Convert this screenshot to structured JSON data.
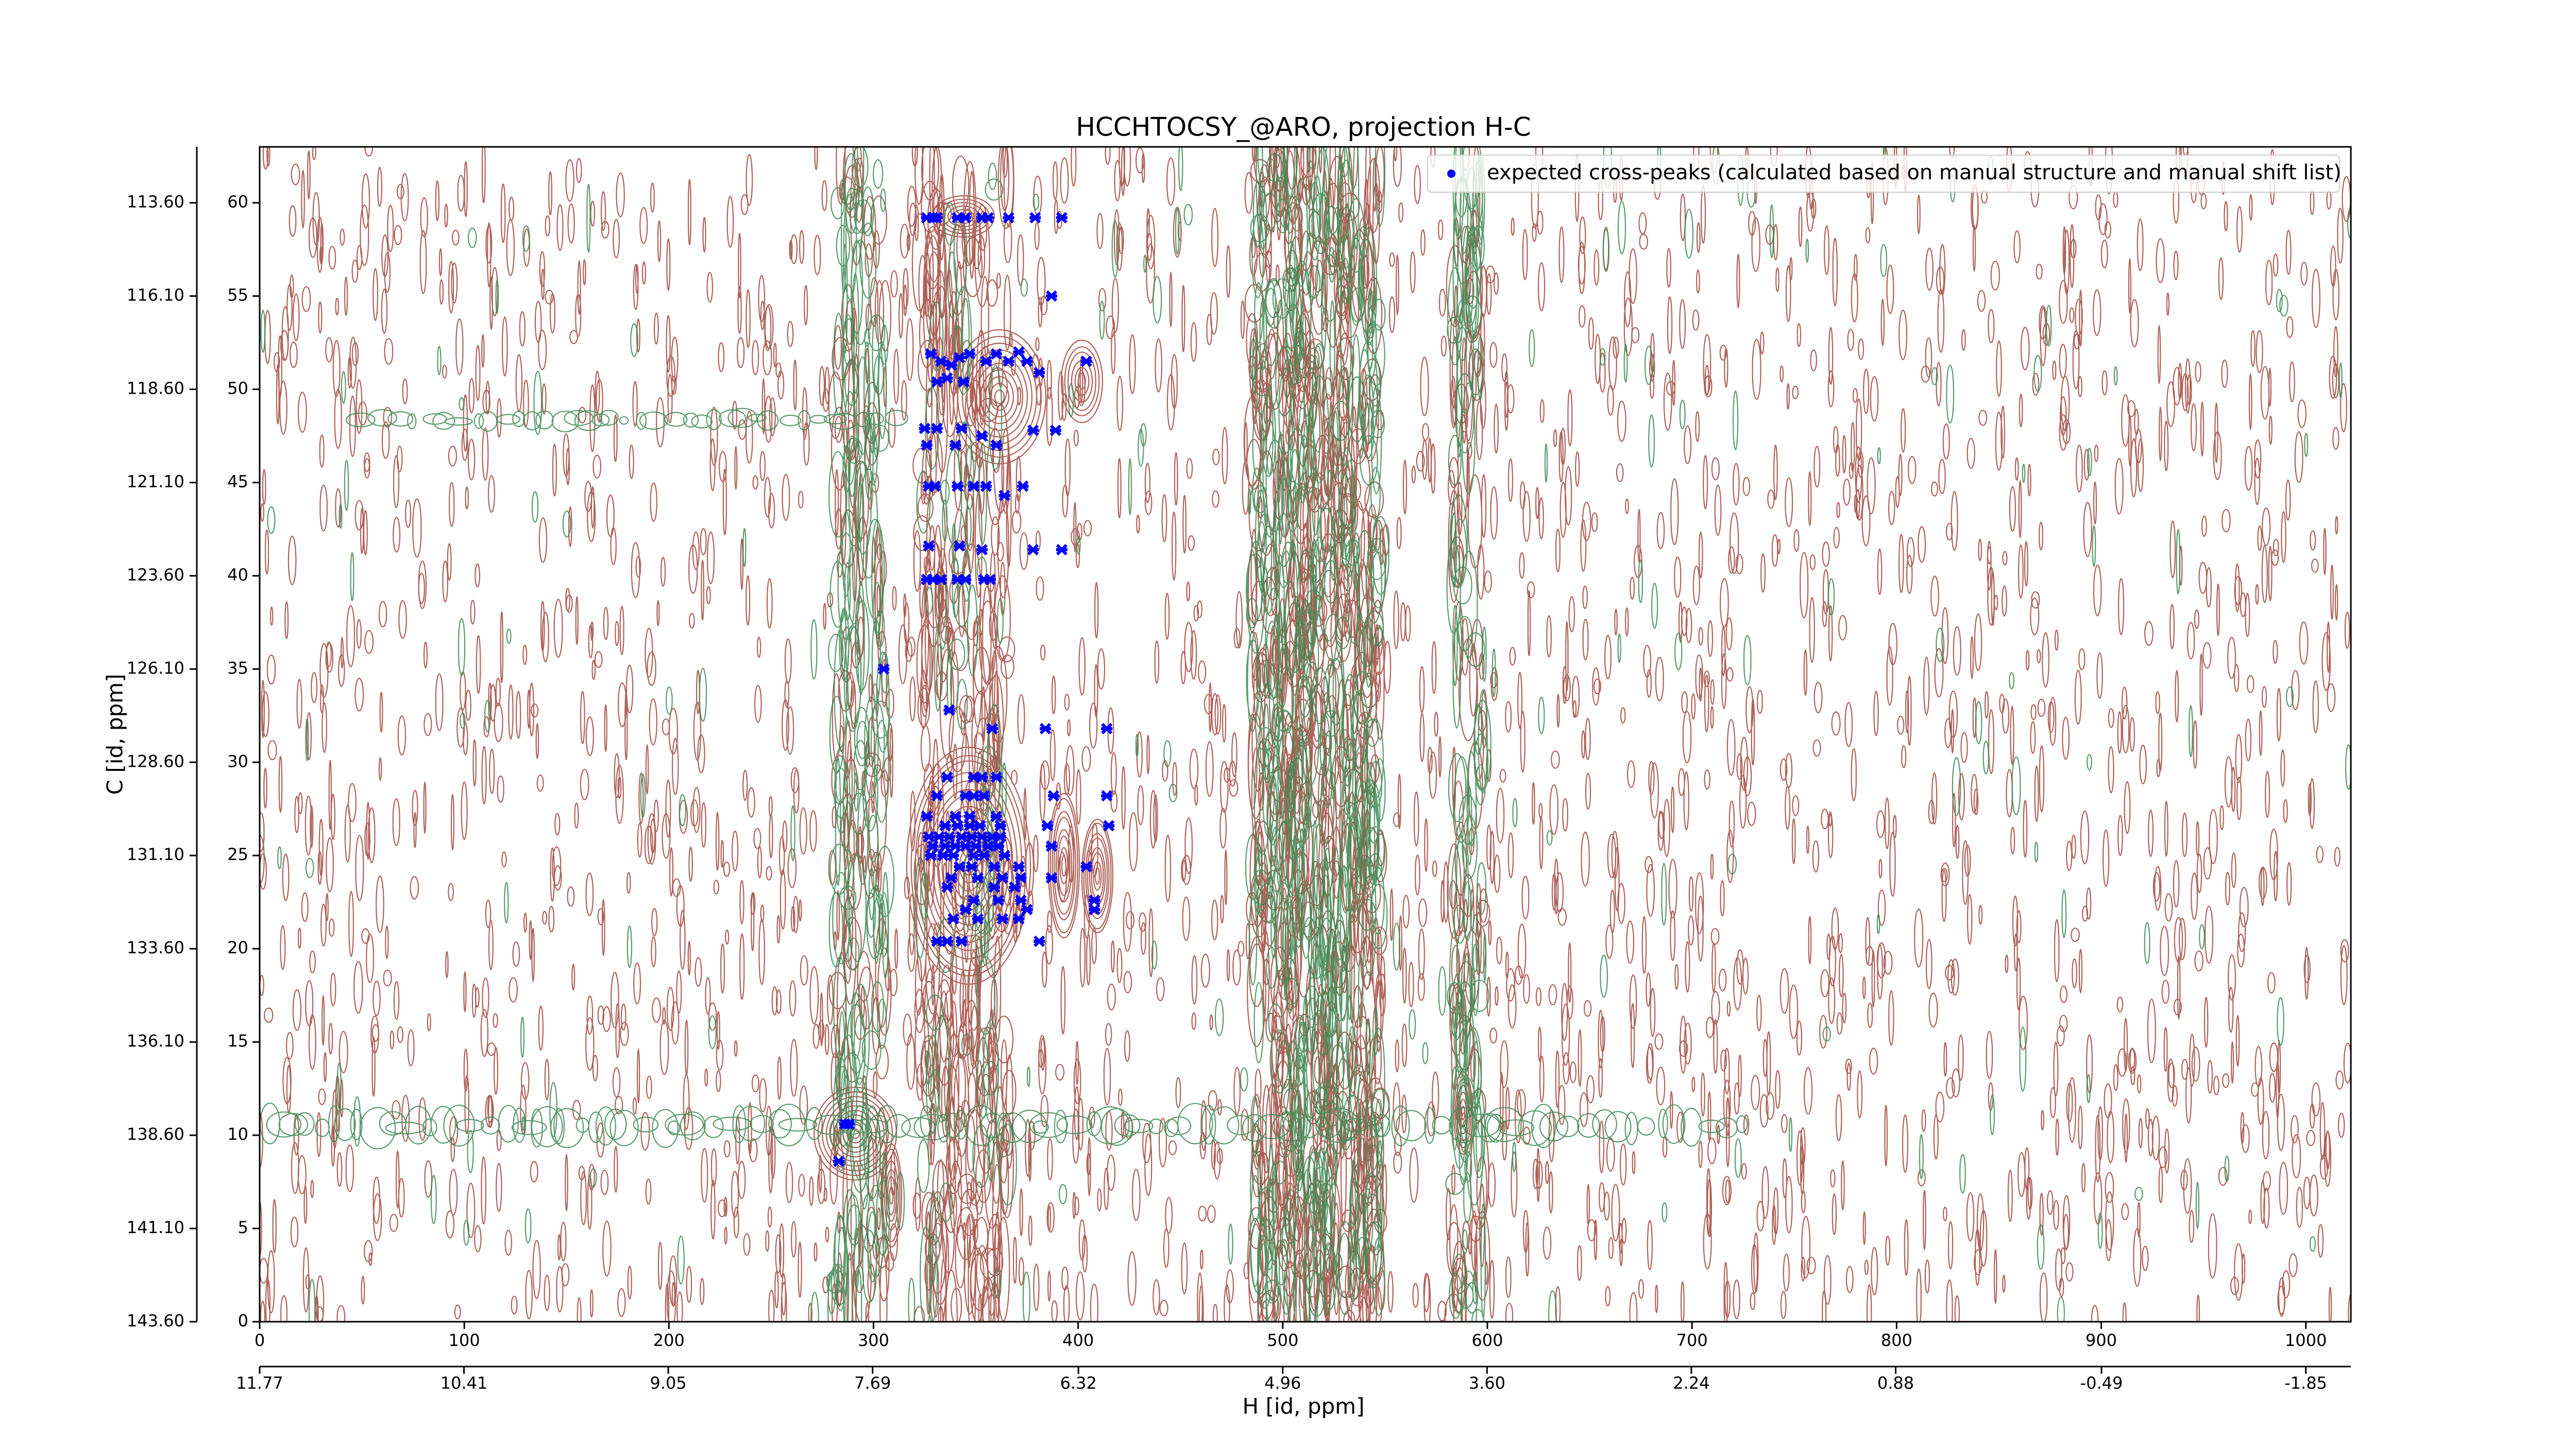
{
  "chart_data": {
    "type": "scatter",
    "title": "HCCHTOCSY_@ARO, projection H-C",
    "xlabel": "H [id, ppm]",
    "ylabel": "C [id, ppm]",
    "xlim": [
      0,
      1022
    ],
    "ylim": [
      0,
      63
    ],
    "xticks": [
      0,
      100,
      200,
      300,
      400,
      500,
      600,
      700,
      800,
      900,
      1000
    ],
    "yticks": [
      0,
      5,
      10,
      15,
      20,
      25,
      30,
      35,
      40,
      45,
      50,
      55,
      60
    ],
    "x2lim": [
      11.77,
      -2.15
    ],
    "x2ticks": [
      11.77,
      10.41,
      9.05,
      7.69,
      6.32,
      4.96,
      {
        "value": 3.6,
        "label": "3.60"
      },
      2.24,
      0.88,
      -0.49,
      -1.85
    ],
    "y2lim": [
      143.6,
      112.1
    ],
    "y2ticks": [
      {
        "value": 143.6,
        "label": "143.60"
      },
      {
        "value": 141.1,
        "label": "141.10"
      },
      {
        "value": 138.6,
        "label": "138.60"
      },
      {
        "value": 136.1,
        "label": "136.10"
      },
      {
        "value": 133.6,
        "label": "133.60"
      },
      {
        "value": 131.1,
        "label": "131.10"
      },
      {
        "value": 128.6,
        "label": "128.60"
      },
      {
        "value": 126.1,
        "label": "126.10"
      },
      {
        "value": 123.6,
        "label": "123.60"
      },
      {
        "value": 121.1,
        "label": "121.10"
      },
      {
        "value": 118.6,
        "label": "118.60"
      },
      {
        "value": 116.1,
        "label": "116.10"
      },
      {
        "value": 113.6,
        "label": "113.60"
      }
    ],
    "legend": "upper right",
    "series": [
      {
        "name": "expected cross-peaks (calculated based on manual structure and manual shift list)",
        "color": "#0000ff",
        "x": [
          326,
          329,
          331,
          341,
          345,
          353,
          356,
          366,
          379,
          392,
          387,
          328,
          333,
          338,
          342,
          347,
          355,
          360,
          366,
          371,
          375,
          381,
          404,
          336,
          344,
          331,
          325,
          331,
          343,
          353,
          360,
          378,
          389,
          340,
          326,
          327,
          330,
          341,
          349,
          355,
          364,
          373,
          327,
          342,
          353,
          378,
          392,
          326,
          329,
          333,
          341,
          345,
          354,
          357,
          305,
          337,
          358,
          384,
          414,
          336,
          349,
          353,
          360,
          331,
          345,
          349,
          354,
          388,
          414,
          326,
          340,
          347,
          360,
          335,
          341,
          347,
          352,
          362,
          385,
          415,
          327,
          332,
          337,
          343,
          348,
          353,
          358,
          362,
          329,
          335,
          340,
          345,
          350,
          356,
          361,
          387,
          328,
          334,
          339,
          349,
          354,
          364,
          342,
          348,
          359,
          371,
          404,
          338,
          351,
          363,
          372,
          387,
          336,
          359,
          369,
          349,
          361,
          372,
          408,
          345,
          375,
          408,
          339,
          351,
          363,
          371,
          331,
          336,
          343,
          381,
          286,
          288,
          283
        ],
        "y": [
          59.2,
          59.2,
          59.2,
          59.2,
          59.2,
          59.2,
          59.2,
          59.2,
          59.2,
          59.2,
          55,
          51.9,
          51.5,
          51.3,
          51.7,
          51.9,
          51.5,
          51.9,
          51.5,
          52,
          51.5,
          50.9,
          51.5,
          50.6,
          50.4,
          50.4,
          47.9,
          47.9,
          47.9,
          47.5,
          47,
          47.8,
          47.8,
          47,
          47,
          44.8,
          44.8,
          44.8,
          44.8,
          44.8,
          44.3,
          44.8,
          41.6,
          41.6,
          41.4,
          41.4,
          41.4,
          39.8,
          39.8,
          39.8,
          39.8,
          39.8,
          39.8,
          39.8,
          35,
          32.8,
          31.8,
          31.8,
          31.8,
          29.2,
          29.2,
          29.2,
          29.2,
          28.2,
          28.2,
          28.2,
          28.2,
          28.2,
          28.2,
          27.1,
          27.1,
          27.1,
          27.1,
          26.6,
          26.6,
          26.6,
          26.6,
          26.6,
          26.6,
          26.6,
          26,
          26,
          26,
          26,
          26,
          26,
          26,
          26,
          25.5,
          25.5,
          25.5,
          25.5,
          25.5,
          25.5,
          25.5,
          25.5,
          25,
          25,
          25,
          25,
          25,
          25,
          24.4,
          24.4,
          24.4,
          24.4,
          24.4,
          23.8,
          23.8,
          23.8,
          23.8,
          23.8,
          23.3,
          23.3,
          23.3,
          22.6,
          22.6,
          22.6,
          22.6,
          22.1,
          22.1,
          22.1,
          21.6,
          21.6,
          21.6,
          21.6,
          20.4,
          20.4,
          20.4,
          20.4,
          10.6,
          10.6,
          8.6
        ]
      }
    ]
  }
}
